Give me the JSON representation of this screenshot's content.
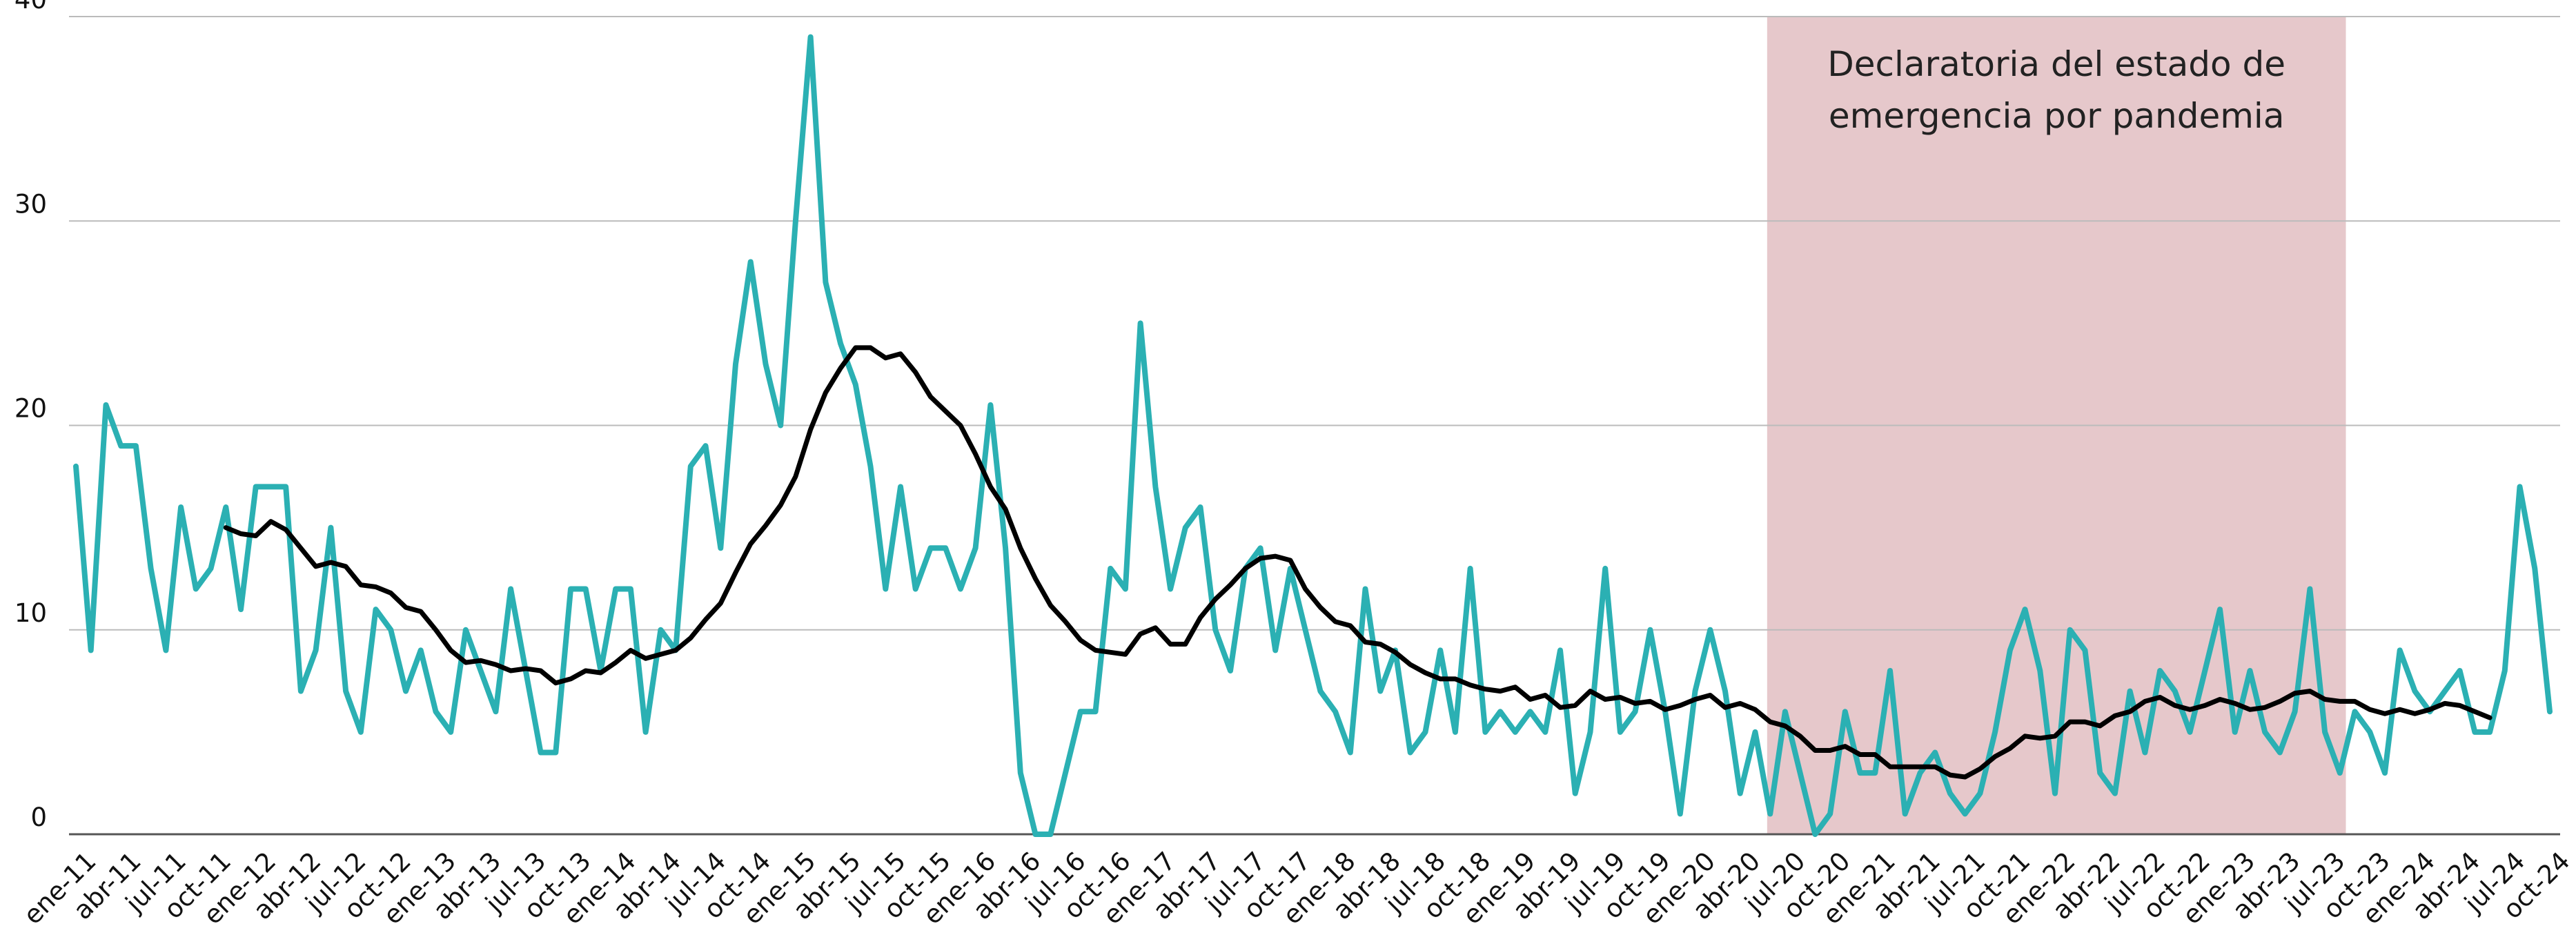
{
  "chart_data": {
    "type": "line",
    "categories": [
      "ene-11",
      null,
      null,
      "abr-11",
      null,
      null,
      "jul-11",
      null,
      null,
      "oct-11",
      null,
      null,
      "ene-12",
      null,
      null,
      "abr-12",
      null,
      null,
      "jul-12",
      null,
      null,
      "oct-12",
      null,
      null,
      "ene-13",
      null,
      null,
      "abr-13",
      null,
      null,
      "jul-13",
      null,
      null,
      "oct-13",
      null,
      null,
      "ene-14",
      null,
      null,
      "abr-14",
      null,
      null,
      "jul-14",
      null,
      null,
      "oct-14",
      null,
      null,
      "ene-15",
      null,
      null,
      "abr-15",
      null,
      null,
      "jul-15",
      null,
      null,
      "oct-15",
      null,
      null,
      "ene-16",
      null,
      null,
      "abr-16",
      null,
      null,
      "jul-16",
      null,
      null,
      "oct-16",
      null,
      null,
      "ene-17",
      null,
      null,
      "abr-17",
      null,
      null,
      "jul-17",
      null,
      null,
      "oct-17",
      null,
      null,
      "ene-18",
      null,
      null,
      "abr-18",
      null,
      null,
      "jul-18",
      null,
      null,
      "oct-18",
      null,
      null,
      "ene-19",
      null,
      null,
      "abr-19",
      null,
      null,
      "jul-19",
      null,
      null,
      "oct-19",
      null,
      null,
      "ene-20",
      null,
      null,
      "abr-20",
      null,
      null,
      "jul-20",
      null,
      null,
      "oct-20",
      null,
      null,
      "ene-21",
      null,
      null,
      "abr-21",
      null,
      null,
      "jul-21",
      null,
      null,
      "oct-21",
      null,
      null,
      "ene-22",
      null,
      null,
      "abr-22",
      null,
      null,
      "jul-22",
      null,
      null,
      "oct-22",
      null,
      null,
      "ene-23",
      null,
      null,
      "abr-23",
      null,
      null,
      "jul-23",
      null,
      null,
      "oct-23",
      null,
      null,
      "ene-24",
      null,
      null,
      "abr-24",
      null,
      null,
      "jul-24",
      null,
      null,
      "oct-24"
    ],
    "series": [
      {
        "color": "#2bb0b3",
        "values": [
          18,
          9,
          21,
          19,
          19,
          13,
          9,
          16,
          12,
          13,
          16,
          11,
          17,
          17,
          17,
          7,
          9,
          15,
          7,
          5,
          11,
          10,
          7,
          9,
          6,
          5,
          10,
          8,
          6,
          12,
          8,
          4,
          4,
          12,
          12,
          8,
          12,
          12,
          5,
          10,
          9,
          18,
          19,
          14,
          23,
          28,
          23,
          20,
          30,
          39,
          27,
          24,
          22,
          18,
          12,
          17,
          12,
          14,
          14,
          12,
          14,
          21,
          14,
          3,
          0,
          0,
          3,
          6,
          6,
          13,
          12,
          25,
          17,
          12,
          15,
          16,
          10,
          8,
          13,
          14,
          9,
          13,
          10,
          7,
          6,
          4,
          12,
          7,
          9,
          4,
          5,
          9,
          5,
          13,
          5,
          6,
          5,
          6,
          5,
          9,
          2,
          5,
          13,
          5,
          6,
          10,
          6,
          1,
          7,
          10,
          7,
          2,
          5,
          1,
          6,
          3,
          0,
          1,
          6,
          3,
          3,
          8,
          1,
          3,
          4,
          2,
          1,
          2,
          5,
          9,
          11,
          8,
          2,
          10,
          9,
          3,
          2,
          7,
          4,
          8,
          7,
          5,
          8,
          11,
          5,
          8,
          5,
          4,
          6,
          12,
          5,
          3,
          6,
          5,
          3,
          9,
          7,
          6,
          7,
          8,
          5,
          5,
          8,
          17,
          13,
          6
        ]
      },
      {
        "color": "#000000",
        "values": [
          null,
          null,
          null,
          null,
          null,
          null,
          null,
          null,
          null,
          null,
          15.0,
          14.7,
          14.6,
          15.3,
          14.9,
          14.0,
          13.1,
          13.3,
          13.1,
          12.2,
          12.1,
          11.8,
          11.1,
          10.9,
          10.0,
          9.0,
          8.4,
          8.5,
          8.3,
          8.0,
          8.1,
          8.0,
          7.4,
          7.6,
          8.0,
          7.9,
          8.4,
          9.0,
          8.6,
          8.8,
          9.0,
          9.6,
          10.5,
          11.3,
          12.8,
          14.2,
          15.1,
          16.1,
          17.5,
          19.8,
          21.6,
          22.8,
          23.8,
          23.8,
          23.3,
          23.5,
          22.6,
          21.4,
          20.7,
          20.0,
          18.6,
          17.0,
          15.9,
          14.0,
          12.5,
          11.2,
          10.4,
          9.5,
          9.0,
          8.9,
          8.8,
          9.8,
          10.1,
          9.3,
          9.3,
          10.6,
          11.5,
          12.2,
          13.0,
          13.5,
          13.6,
          13.4,
          12.0,
          11.1,
          10.4,
          10.2,
          9.4,
          9.3,
          8.9,
          8.3,
          7.9,
          7.6,
          7.6,
          7.3,
          7.1,
          7.0,
          7.2,
          6.6,
          6.8,
          6.2,
          6.3,
          7.0,
          6.6,
          6.7,
          6.4,
          6.5,
          6.1,
          6.3,
          6.6,
          6.8,
          6.2,
          6.4,
          6.1,
          5.5,
          5.3,
          4.8,
          4.1,
          4.1,
          4.3,
          3.9,
          3.9,
          3.3,
          3.3,
          3.3,
          3.3,
          2.9,
          2.8,
          3.2,
          3.8,
          4.2,
          4.8,
          4.7,
          4.8,
          5.5,
          5.5,
          5.3,
          5.8,
          6.0,
          6.5,
          6.7,
          6.3,
          6.1,
          6.3,
          6.6,
          6.4,
          6.1,
          6.2,
          6.5,
          6.9,
          7.0,
          6.6,
          6.5,
          6.5,
          6.1,
          5.9,
          6.1,
          5.9,
          6.1,
          6.4,
          6.3,
          6.0,
          5.7,
          null,
          null,
          null,
          null
        ]
      }
    ],
    "ylim": [
      0,
      40
    ],
    "yticks": [
      0,
      10,
      20,
      30,
      40
    ],
    "grid": true,
    "shade": {
      "start_index": 112.8,
      "end_index": 151.4,
      "color": "#e6c8cb",
      "label": [
        "Declaratoria del estado de",
        "emergencia por pandemia"
      ]
    }
  }
}
